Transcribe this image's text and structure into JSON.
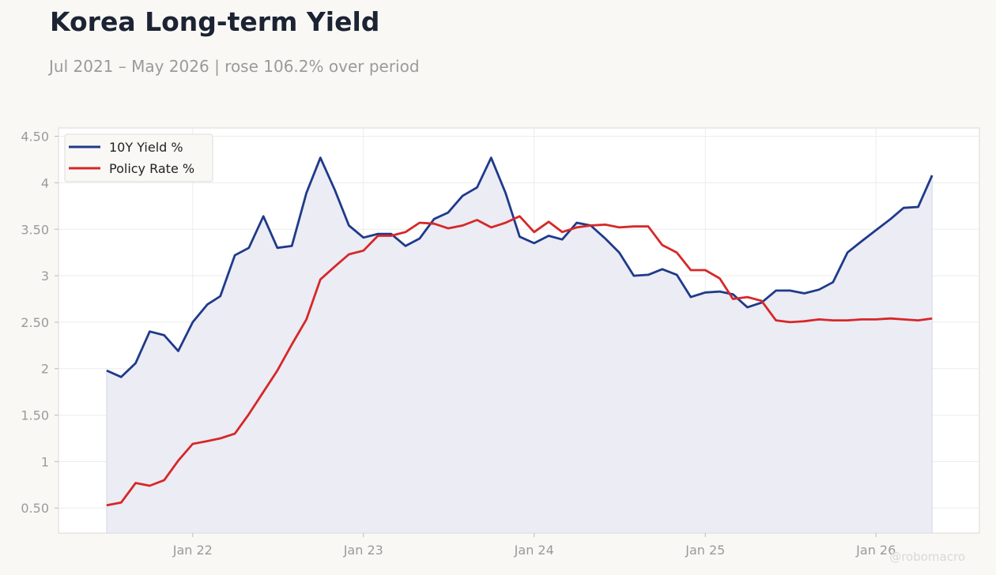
{
  "title": "Korea Long-term Yield",
  "subtitle": "Jul 2021 – May 2026 | rose 106.2% over period",
  "watermark": "@robomacro",
  "colors": {
    "background": "#f9f8f5",
    "plot_background": "#ffffff",
    "yield_line": "#1f3a8a",
    "yield_fill": "#ebecf4",
    "policy_line": "#d62728"
  },
  "chart_data": {
    "type": "line",
    "title": "Korea Long-term Yield",
    "subtitle": "Jul 2021 – May 2026 | rose 106.2% over period",
    "xlabel": "",
    "ylabel": "",
    "x_ticks": [
      {
        "date": "2022-01-01",
        "label": "Jan 22"
      },
      {
        "date": "2023-01-01",
        "label": "Jan 23"
      },
      {
        "date": "2024-01-01",
        "label": "Jan 24"
      },
      {
        "date": "2025-01-01",
        "label": "Jan 25"
      },
      {
        "date": "2026-01-01",
        "label": "Jan 26"
      }
    ],
    "y_ticks": [
      {
        "value": 0.5,
        "label": "0.50"
      },
      {
        "value": 1,
        "label": "1"
      },
      {
        "value": 1.5,
        "label": "1.50"
      },
      {
        "value": 2,
        "label": "2"
      },
      {
        "value": 2.5,
        "label": "2.50"
      },
      {
        "value": 3,
        "label": "3"
      },
      {
        "value": 3.5,
        "label": "3.50"
      },
      {
        "value": 4,
        "label": "4"
      },
      {
        "value": 4.5,
        "label": "4.50"
      }
    ],
    "xlim": [
      "2021-03-20",
      "2026-08-10"
    ],
    "ylim": [
      0.23,
      4.59
    ],
    "grid": true,
    "legend_position": "top-left",
    "x": [
      "2021-07",
      "2021-08",
      "2021-09",
      "2021-10",
      "2021-11",
      "2021-12",
      "2022-01",
      "2022-02",
      "2022-03",
      "2022-04",
      "2022-05",
      "2022-06",
      "2022-07",
      "2022-08",
      "2022-09",
      "2022-10",
      "2022-11",
      "2022-12",
      "2023-01",
      "2023-02",
      "2023-03",
      "2023-04",
      "2023-05",
      "2023-06",
      "2023-07",
      "2023-08",
      "2023-09",
      "2023-10",
      "2023-11",
      "2023-12",
      "2024-01",
      "2024-02",
      "2024-03",
      "2024-04",
      "2024-05",
      "2024-06",
      "2024-07",
      "2024-08",
      "2024-09",
      "2024-10",
      "2024-11",
      "2024-12",
      "2025-01",
      "2025-02",
      "2025-03",
      "2025-04",
      "2025-05",
      "2025-06",
      "2025-07",
      "2025-08",
      "2025-09",
      "2025-10",
      "2025-11",
      "2025-12",
      "2026-01",
      "2026-02",
      "2026-03",
      "2026-04",
      "2026-05"
    ],
    "series": [
      {
        "name": "10Y Yield %",
        "color": "#1f3a8a",
        "fill": true,
        "values": [
          1.98,
          1.91,
          2.06,
          2.4,
          2.36,
          2.19,
          2.5,
          2.69,
          2.78,
          3.22,
          3.3,
          3.64,
          3.3,
          3.32,
          3.89,
          4.27,
          3.92,
          3.54,
          3.41,
          3.45,
          3.45,
          3.32,
          3.4,
          3.61,
          3.68,
          3.86,
          3.95,
          4.27,
          3.89,
          3.42,
          3.35,
          3.43,
          3.39,
          3.57,
          3.54,
          3.4,
          3.25,
          3.0,
          3.01,
          3.07,
          3.01,
          2.77,
          2.82,
          2.83,
          2.8,
          2.66,
          2.71,
          2.84,
          2.84,
          2.81,
          2.85,
          2.93,
          3.25,
          3.37,
          3.49,
          3.61,
          3.73,
          3.74,
          4.08
        ]
      },
      {
        "name": "Policy Rate %",
        "color": "#d62728",
        "fill": false,
        "values": [
          0.53,
          0.56,
          0.77,
          0.74,
          0.8,
          1.01,
          1.19,
          1.22,
          1.25,
          1.3,
          1.51,
          1.75,
          1.98,
          2.26,
          2.53,
          2.96,
          3.1,
          3.23,
          3.27,
          3.43,
          3.43,
          3.47,
          3.57,
          3.56,
          3.51,
          3.54,
          3.6,
          3.52,
          3.57,
          3.64,
          3.47,
          3.58,
          3.47,
          3.52,
          3.54,
          3.55,
          3.52,
          3.53,
          3.53,
          3.33,
          3.25,
          3.06,
          3.06,
          2.97,
          2.75,
          2.77,
          2.73,
          2.52,
          2.5,
          2.51,
          2.53,
          2.52,
          2.52,
          2.53,
          2.53,
          2.54,
          2.53,
          2.52,
          2.54
        ]
      }
    ]
  }
}
